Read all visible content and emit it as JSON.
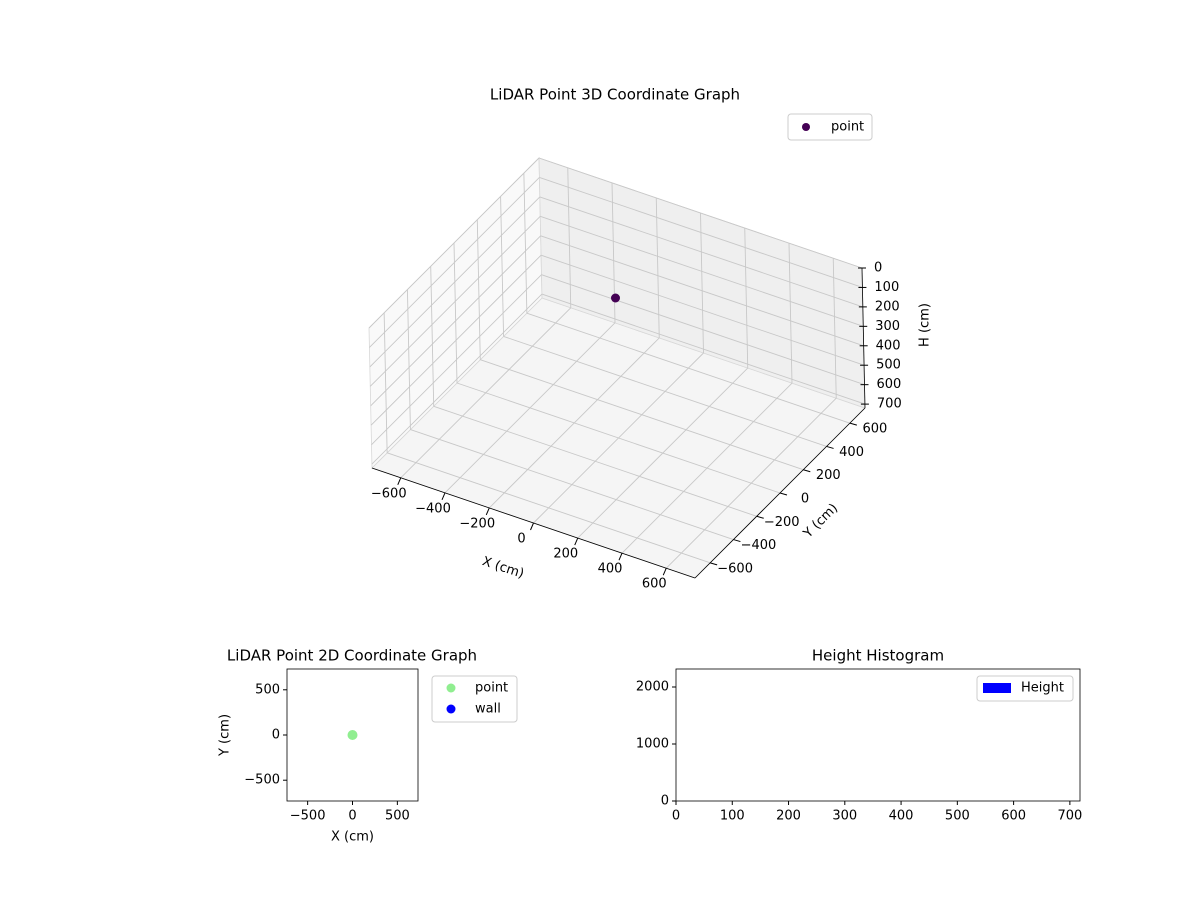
{
  "chart_data": [
    {
      "type": "scatter3d",
      "title": "LiDAR Point 3D Coordinate Graph",
      "x_label": "X (cm)",
      "y_label": "Y (cm)",
      "z_label": "H (cm)",
      "xlim": [
        -730,
        730
      ],
      "ylim": [
        -730,
        730
      ],
      "zlim": [
        720,
        0
      ],
      "xticks": [
        {
          "value": -600,
          "label": "−600"
        },
        {
          "value": -400,
          "label": "−400"
        },
        {
          "value": -200,
          "label": "−200"
        },
        0,
        200,
        400,
        600
      ],
      "yticks": [
        {
          "value": -600,
          "label": "−600"
        },
        {
          "value": -400,
          "label": "−400"
        },
        {
          "value": -200,
          "label": "−200"
        },
        0,
        200,
        400,
        600
      ],
      "zticks": [
        0,
        100,
        200,
        300,
        400,
        500,
        600,
        700
      ],
      "grid": true,
      "legend": "upper right",
      "series": [
        {
          "name": "point",
          "color": "#440154",
          "x": [
            0
          ],
          "y": [
            0
          ],
          "z": [
            0
          ]
        }
      ]
    },
    {
      "type": "scatter",
      "title": "LiDAR Point 2D Coordinate Graph",
      "x_label": "X (cm)",
      "y_label": "Y (cm)",
      "xlim": [
        -730,
        730
      ],
      "ylim": [
        -730,
        730
      ],
      "xticks": [
        {
          "value": -500,
          "label": "−500"
        },
        0,
        500
      ],
      "yticks": [
        {
          "value": -500,
          "label": "−500"
        },
        0,
        500
      ],
      "legend": "outside upper right",
      "series": [
        {
          "name": "point",
          "color": "#90ee90",
          "x": [
            0
          ],
          "y": [
            0
          ]
        },
        {
          "name": "wall",
          "color": "#0000ff",
          "x": [],
          "y": []
        }
      ]
    },
    {
      "type": "histogram",
      "title": "Height Histogram",
      "xlim": [
        0,
        718
      ],
      "ylim": [
        0,
        2316
      ],
      "xticks": [
        0,
        100,
        200,
        300,
        400,
        500,
        600,
        700
      ],
      "yticks": [
        0,
        1000,
        2000
      ],
      "legend": "upper right",
      "series": [
        {
          "name": "Height",
          "color": "#0000ff"
        }
      ]
    }
  ]
}
